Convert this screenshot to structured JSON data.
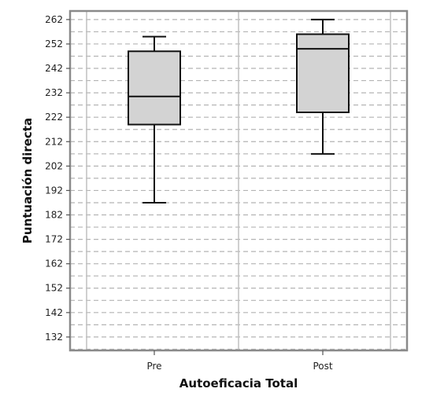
{
  "chart_data": {
    "type": "box",
    "xlabel": "Autoeficacia Total",
    "ylabel": "Puntuación directa",
    "ylim": [
      126.5,
      265.5
    ],
    "yticks": [
      132,
      142,
      152,
      162,
      172,
      182,
      192,
      202,
      212,
      222,
      232,
      242,
      252,
      262
    ],
    "grid": {
      "horizontal": "dashed",
      "vertical": "category-separators"
    },
    "categories": [
      "Pre",
      "Post"
    ],
    "boxes": [
      {
        "category": "Pre",
        "min": 187,
        "q1": 219,
        "median": 230.5,
        "q3": 249,
        "max": 255
      },
      {
        "category": "Post",
        "min": 207,
        "q1": 224,
        "median": 250,
        "q3": 256,
        "max": 262
      }
    ],
    "colors": {
      "box_fill": "#d3d3d3",
      "box_stroke": "#111111",
      "grid": "#b4b4b4",
      "frame": "#8a8a8a"
    }
  }
}
